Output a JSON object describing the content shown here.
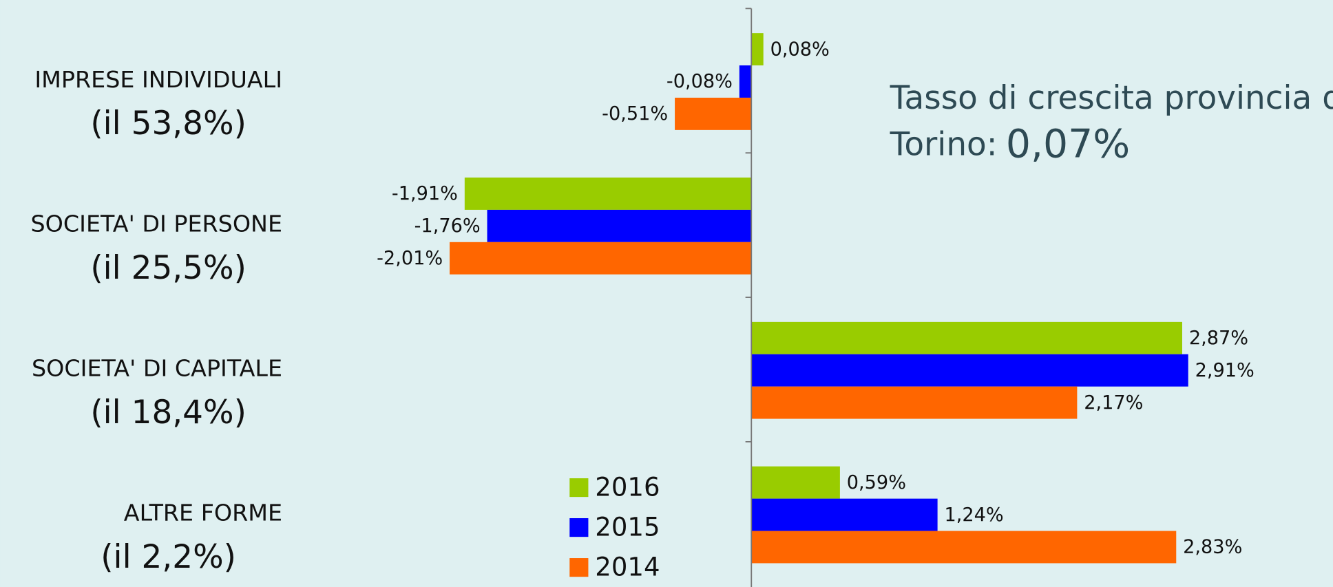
{
  "chart_data": {
    "type": "hbar",
    "categories": [
      "IMPRESE INDIVIDUALI",
      "SOCIETA' DI PERSONE",
      "SOCIETA' DI CAPITALE",
      "ALTRE FORME"
    ],
    "category_shares": [
      "(il 53,8%)",
      "(il 25,5%)",
      "(il 18,4%)",
      "(il 2,2%)"
    ],
    "series": [
      {
        "name": "2016",
        "color": "#99cc00",
        "values": [
          0.08,
          -1.91,
          2.87,
          0.59
        ],
        "value_labels": [
          "0,08%",
          "-1,91%",
          "2,87%",
          "0,59%"
        ]
      },
      {
        "name": "2015",
        "color": "#0000ff",
        "values": [
          -0.08,
          -1.76,
          2.91,
          1.24
        ],
        "value_labels": [
          "-0,08%",
          "-1,76%",
          "2,91%",
          "1,24%"
        ]
      },
      {
        "name": "2014",
        "color": "#ff6600",
        "values": [
          -0.51,
          -2.01,
          2.17,
          2.83
        ],
        "value_labels": [
          "-0,51%",
          "-2,01%",
          "2,17%",
          "2,83%"
        ]
      }
    ],
    "xlim": [
      -3,
      3.8
    ],
    "legend": "bottom-center",
    "annotation": [
      "Tasso di crescita provincia di",
      "Torino:",
      "0,07%"
    ]
  }
}
